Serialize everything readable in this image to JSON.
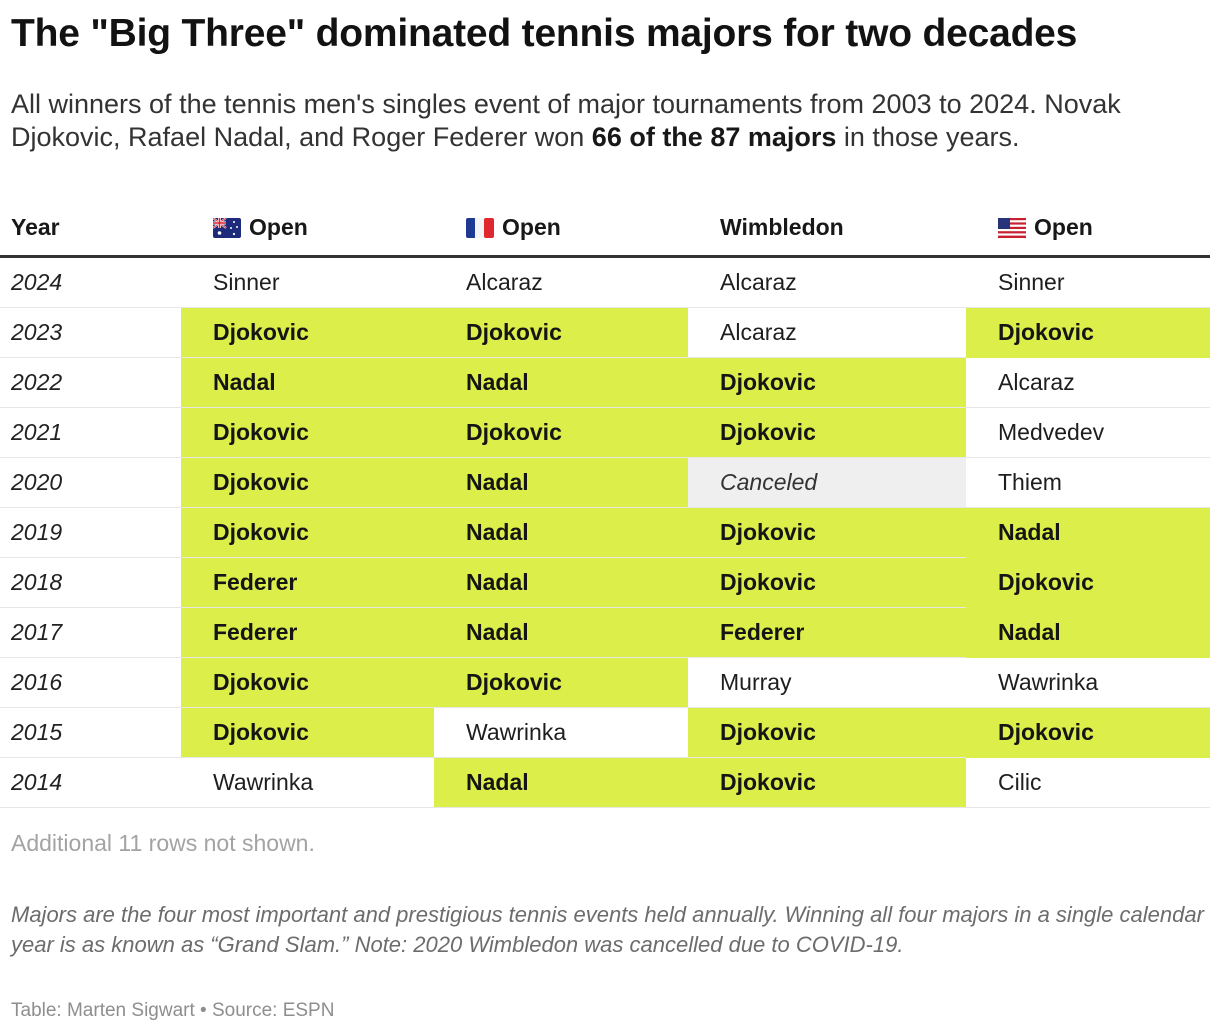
{
  "title": "The \"Big Three\" dominated tennis majors for two decades",
  "subtitle": {
    "pre": "All winners of the tennis men's singles event of major tournaments from 2003 to 2024. Novak Djokovic, Rafael Nadal, and Roger Federer won ",
    "bold": "66 of the 87 majors",
    "post": " in those years."
  },
  "colors": {
    "highlight": "#dcee4a",
    "canceled": "#efefef",
    "rule": "#333333"
  },
  "chart_data": {
    "type": "table",
    "columns": [
      {
        "label": "Year"
      },
      {
        "label": "Open",
        "icon": "australia-flag-icon"
      },
      {
        "label": "Open",
        "icon": "france-flag-icon"
      },
      {
        "label": "Wimbledon"
      },
      {
        "label": "Open",
        "icon": "usa-flag-icon"
      }
    ],
    "highlighted_players": [
      "Djokovic",
      "Nadal",
      "Federer"
    ],
    "rows": [
      {
        "year": "2024",
        "winners": [
          "Sinner",
          "Alcaraz",
          "Alcaraz",
          "Sinner"
        ]
      },
      {
        "year": "2023",
        "winners": [
          "Djokovic",
          "Djokovic",
          "Alcaraz",
          "Djokovic"
        ]
      },
      {
        "year": "2022",
        "winners": [
          "Nadal",
          "Nadal",
          "Djokovic",
          "Alcaraz"
        ]
      },
      {
        "year": "2021",
        "winners": [
          "Djokovic",
          "Djokovic",
          "Djokovic",
          "Medvedev"
        ]
      },
      {
        "year": "2020",
        "winners": [
          "Djokovic",
          "Nadal",
          "Canceled",
          "Thiem"
        ]
      },
      {
        "year": "2019",
        "winners": [
          "Djokovic",
          "Nadal",
          "Djokovic",
          "Nadal"
        ]
      },
      {
        "year": "2018",
        "winners": [
          "Federer",
          "Nadal",
          "Djokovic",
          "Djokovic"
        ]
      },
      {
        "year": "2017",
        "winners": [
          "Federer",
          "Nadal",
          "Federer",
          "Nadal"
        ]
      },
      {
        "year": "2016",
        "winners": [
          "Djokovic",
          "Djokovic",
          "Murray",
          "Wawrinka"
        ]
      },
      {
        "year": "2015",
        "winners": [
          "Djokovic",
          "Wawrinka",
          "Djokovic",
          "Djokovic"
        ]
      },
      {
        "year": "2014",
        "winners": [
          "Wawrinka",
          "Nadal",
          "Djokovic",
          "Cilic"
        ]
      }
    ]
  },
  "more_rows": "Additional 11 rows not shown.",
  "note": "Majors are the four most important and prestigious tennis events held annually. Winning all four majors in a single calendar year is as known as “Grand Slam.” Note: 2020 Wimbledon was cancelled due to COVID-19.",
  "credit": "Table: Marten Sigwart • Source: ESPN"
}
